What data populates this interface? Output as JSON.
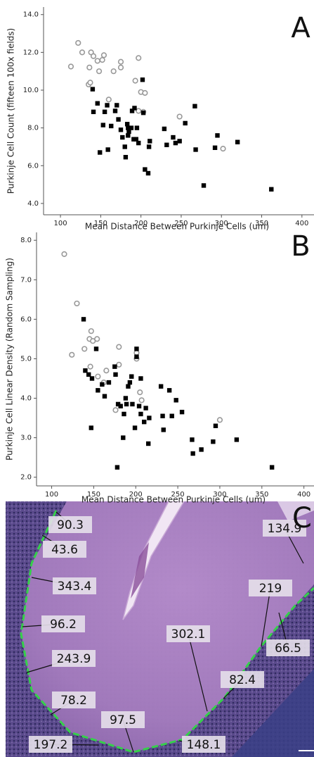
{
  "chart_data": [
    {
      "type": "scatter",
      "panel_label": "A",
      "x_label": "Mean Distance Between Purkinje Cells (um)",
      "y_label": "Purkinje Cell Count (fifteen 100x fields)",
      "xlim": [
        79,
        415
      ],
      "xticks": [
        100,
        150,
        200,
        250,
        300,
        350,
        400
      ],
      "ylim": [
        3.4,
        14.4
      ],
      "yticks": [
        {
          "value": 4,
          "label": "4.0"
        },
        {
          "value": 6,
          "label": "6.0"
        },
        {
          "value": 8,
          "label": "8.0"
        },
        {
          "value": 10,
          "label": "10.0"
        },
        {
          "value": 12,
          "label": "12.0"
        },
        {
          "value": 14,
          "label": "14.0"
        }
      ],
      "series": [
        {
          "color": "#999999",
          "marker": "circle",
          "x": [
            113,
            122,
            127,
            138,
            141,
            136,
            148,
            152,
            154,
            146,
            135,
            137,
            166,
            175,
            175,
            160,
            197,
            193,
            200,
            205,
            197,
            203,
            248,
            302
          ],
          "values": [
            11.25,
            12.5,
            12.0,
            12.0,
            11.8,
            11.2,
            11.0,
            11.6,
            11.85,
            11.55,
            10.3,
            10.4,
            11.0,
            11.2,
            11.5,
            9.5,
            11.7,
            10.5,
            9.9,
            9.85,
            8.9,
            8.85,
            8.6,
            6.9
          ]
        },
        {
          "color": "#000000",
          "marker": "square",
          "x": [
            140,
            141,
            146,
            149,
            153,
            155,
            158,
            159,
            163,
            168,
            170,
            172,
            175,
            177,
            180,
            181,
            183,
            184,
            184,
            185,
            188,
            189,
            191,
            192,
            194,
            195,
            197,
            202,
            203,
            205,
            209,
            210,
            211,
            229,
            232,
            240,
            243,
            248,
            255,
            267,
            268,
            278,
            292,
            295,
            320,
            362
          ],
          "values": [
            10.05,
            8.85,
            9.3,
            6.7,
            8.15,
            8.85,
            9.2,
            6.85,
            8.1,
            8.9,
            9.2,
            8.45,
            7.9,
            7.5,
            7.0,
            6.45,
            8.2,
            8.0,
            7.6,
            7.8,
            8.0,
            8.9,
            7.4,
            9.05,
            7.4,
            8.0,
            7.2,
            10.55,
            8.8,
            5.8,
            5.6,
            7.0,
            7.3,
            7.95,
            7.1,
            7.5,
            7.2,
            7.3,
            8.25,
            9.15,
            6.85,
            4.95,
            6.95,
            7.6,
            7.25,
            4.75
          ]
        }
      ]
    },
    {
      "type": "scatter",
      "panel_label": "B",
      "x_label": "Mean Distance Between Purkinje Cells (um)",
      "y_label": "Purkinje Cell Linear Density (Random Sampling)",
      "xlim": [
        82,
        412
      ],
      "xticks": [
        100,
        150,
        200,
        250,
        300,
        350,
        400
      ],
      "ylim": [
        1.78,
        8.2
      ],
      "yticks": [
        {
          "value": 2,
          "label": "2.0"
        },
        {
          "value": 3,
          "label": "3.0"
        },
        {
          "value": 4,
          "label": "4.0"
        },
        {
          "value": 5,
          "label": "5.0"
        },
        {
          "value": 6,
          "label": "6.0"
        },
        {
          "value": 7,
          "label": "7.0"
        },
        {
          "value": 8,
          "label": "8.0"
        }
      ],
      "series": [
        {
          "color": "#999999",
          "marker": "circle",
          "x": [
            115,
            130,
            124,
            139,
            145,
            147,
            149,
            154,
            146,
            155,
            162,
            165,
            176,
            180,
            180,
            201,
            201,
            205,
            207,
            300
          ],
          "values": [
            7.65,
            6.4,
            5.1,
            5.25,
            5.5,
            5.7,
            5.45,
            5.5,
            4.8,
            4.55,
            4.4,
            4.7,
            3.7,
            5.3,
            4.85,
            5.15,
            5.0,
            4.15,
            3.95,
            3.45
          ]
        },
        {
          "color": "#000000",
          "marker": "square",
          "x": [
            138,
            140,
            144,
            147,
            148,
            153,
            155,
            160,
            163,
            168,
            175,
            176,
            178,
            179,
            182,
            185,
            186,
            188,
            189,
            191,
            193,
            195,
            196,
            199,
            201,
            201,
            204,
            206,
            206,
            210,
            212,
            215,
            216,
            230,
            232,
            233,
            240,
            243,
            248,
            255,
            267,
            268,
            278,
            292,
            295,
            320,
            362
          ],
          "values": [
            6.0,
            4.7,
            4.6,
            3.25,
            4.5,
            5.25,
            4.2,
            4.35,
            4.05,
            4.4,
            4.8,
            4.6,
            2.25,
            3.85,
            3.8,
            3.0,
            3.6,
            4.0,
            3.85,
            4.3,
            4.4,
            4.55,
            3.85,
            3.25,
            5.25,
            5.05,
            3.8,
            4.5,
            3.6,
            3.4,
            3.75,
            2.85,
            3.5,
            4.3,
            3.55,
            3.2,
            4.2,
            3.55,
            3.95,
            3.65,
            2.95,
            2.6,
            2.7,
            2.9,
            3.3,
            2.95,
            2.25
          ]
        }
      ]
    }
  ],
  "panel_c": {
    "label": "C",
    "measurements": [
      90.3,
      43.6,
      343.4,
      96.2,
      243.9,
      78.2,
      97.5,
      197.2,
      148.1,
      302.1,
      82.4,
      219.0,
      134.9,
      66.5
    ]
  }
}
